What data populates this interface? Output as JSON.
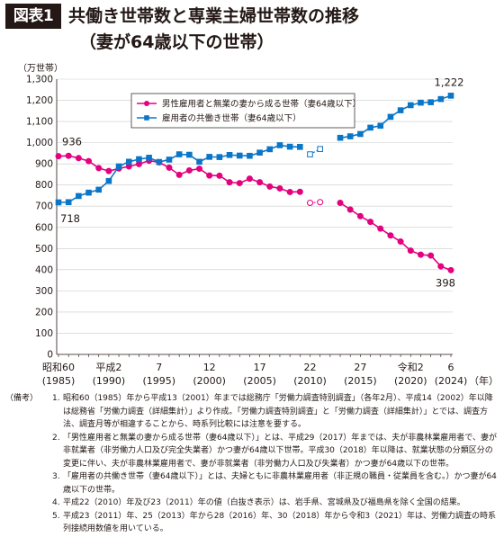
{
  "figure_label": "図表1",
  "title": "共働き世帯数と専業主婦世帯数の推移",
  "subtitle": "（妻が64歳以下の世帯）",
  "chart_data": {
    "type": "line",
    "title": "共働き世帯数と専業主婦世帯数の推移",
    "ylabel": "（万世帯）",
    "xlabel": "（年）",
    "ylim": [
      0,
      1300
    ],
    "yticks": [
      0,
      100,
      200,
      300,
      400,
      500,
      600,
      700,
      800,
      900,
      1000,
      1100,
      1200,
      1300
    ],
    "ytick_labels": [
      "0",
      "100",
      "200",
      "300",
      "400",
      "500",
      "600",
      "700",
      "800",
      "900",
      "1,000",
      "1,100",
      "1,200",
      "1,300"
    ],
    "x": [
      1985,
      1986,
      1987,
      1988,
      1989,
      1990,
      1991,
      1992,
      1993,
      1994,
      1995,
      1996,
      1997,
      1998,
      1999,
      2000,
      2001,
      2002,
      2003,
      2004,
      2005,
      2006,
      2007,
      2008,
      2009,
      2010,
      2011,
      2012,
      2013,
      2014,
      2015,
      2016,
      2017,
      2018,
      2019,
      2020,
      2021,
      2022,
      2023,
      2024
    ],
    "xticks": [
      {
        "year": 1985,
        "era": "昭和60",
        "ad": "(1985)"
      },
      {
        "year": 1990,
        "era": "平成2",
        "ad": "(1990)"
      },
      {
        "year": 1995,
        "era": "7",
        "ad": "(1995)"
      },
      {
        "year": 2000,
        "era": "12",
        "ad": "(2000)"
      },
      {
        "year": 2005,
        "era": "17",
        "ad": "(2005)"
      },
      {
        "year": 2010,
        "era": "22",
        "ad": "(2010)"
      },
      {
        "year": 2015,
        "era": "27",
        "ad": "(2015)"
      },
      {
        "year": 2020,
        "era": "令和2",
        "ad": "(2020)"
      },
      {
        "year": 2024,
        "era": "6",
        "ad": "(2024)"
      }
    ],
    "hollow_years": [
      2010,
      2011
    ],
    "series": [
      {
        "name": "男性雇用者と無業の妻から成る世帯（妻64歳以下）",
        "color": "#e4007f",
        "marker": "circle",
        "values": [
          936,
          938,
          927,
          913,
          880,
          866,
          878,
          888,
          899,
          915,
          907,
          882,
          848,
          869,
          877,
          845,
          844,
          813,
          809,
          830,
          813,
          793,
          784,
          767,
          768,
          716,
          719,
          null,
          716,
          684,
          653,
          626,
          594,
          562,
          533,
          490,
          471,
          467,
          416,
          398
        ]
      },
      {
        "name": "雇用者の共働き世帯（妻64歳以下）",
        "color": "#0b76c8",
        "marker": "square",
        "values": [
          718,
          719,
          748,
          764,
          778,
          819,
          888,
          910,
          922,
          929,
          909,
          920,
          945,
          943,
          910,
          933,
          932,
          942,
          939,
          938,
          953,
          969,
          988,
          981,
          980,
          945,
          970,
          null,
          1023,
          1030,
          1041,
          1071,
          1080,
          1122,
          1153,
          1177,
          1189,
          1191,
          1206,
          1222
        ]
      }
    ],
    "annotations": [
      {
        "text": "936",
        "series": 0,
        "year": 1985
      },
      {
        "text": "718",
        "series": 1,
        "year": 1985
      },
      {
        "text": "1,222",
        "series": 1,
        "year": 2024
      },
      {
        "text": "398",
        "series": 0,
        "year": 2024
      }
    ],
    "legend_position": "top-center"
  },
  "notes": {
    "heading": "（備考）",
    "items": [
      {
        "num": "1.",
        "text": "昭和60（1985）年から平成13（2001）年までは総務庁「労働力調査特別調査」（各年2月）、平成14（2002）年以降は総務省「労働力調査（詳細集計）」より作成。「労働力調査特別調査」と「労働力調査（詳細集計）」とでは、調査方法、調査月等が相違することから、時系列比較には注意を要する。"
      },
      {
        "num": "2.",
        "text": "「男性雇用者と無業の妻から成る世帯（妻64歳以下）」とは、平成29（2017）年までは、夫が非農林業雇用者で、妻が非就業者（非労働力人口及び完全失業者）かつ妻が64歳以下世帯。平成30（2018）年以降は、就業状態の分類区分の変更に伴い、夫が非農林業雇用者で、妻が非就業者（非労働力人口及び失業者）かつ妻が64歳以下の世帯。"
      },
      {
        "num": "3.",
        "text": "「雇用者の共働き世帯（妻64歳以下）」とは、夫婦ともに非農林業雇用者（非正規の職員・従業員を含む。）かつ妻が64歳以下の世帯。"
      },
      {
        "num": "4.",
        "text": "平成22（2010）年及び23（2011）年の値（白抜き表示）は、岩手県、宮城県及び福島県を除く全国の結果。"
      },
      {
        "num": "5.",
        "text": "平成23（2011）年、25（2013）年から28（2016）年、30（2018）年から令和3（2021）年は、労働力調査の時系列接続用数値を用いている。"
      }
    ]
  }
}
